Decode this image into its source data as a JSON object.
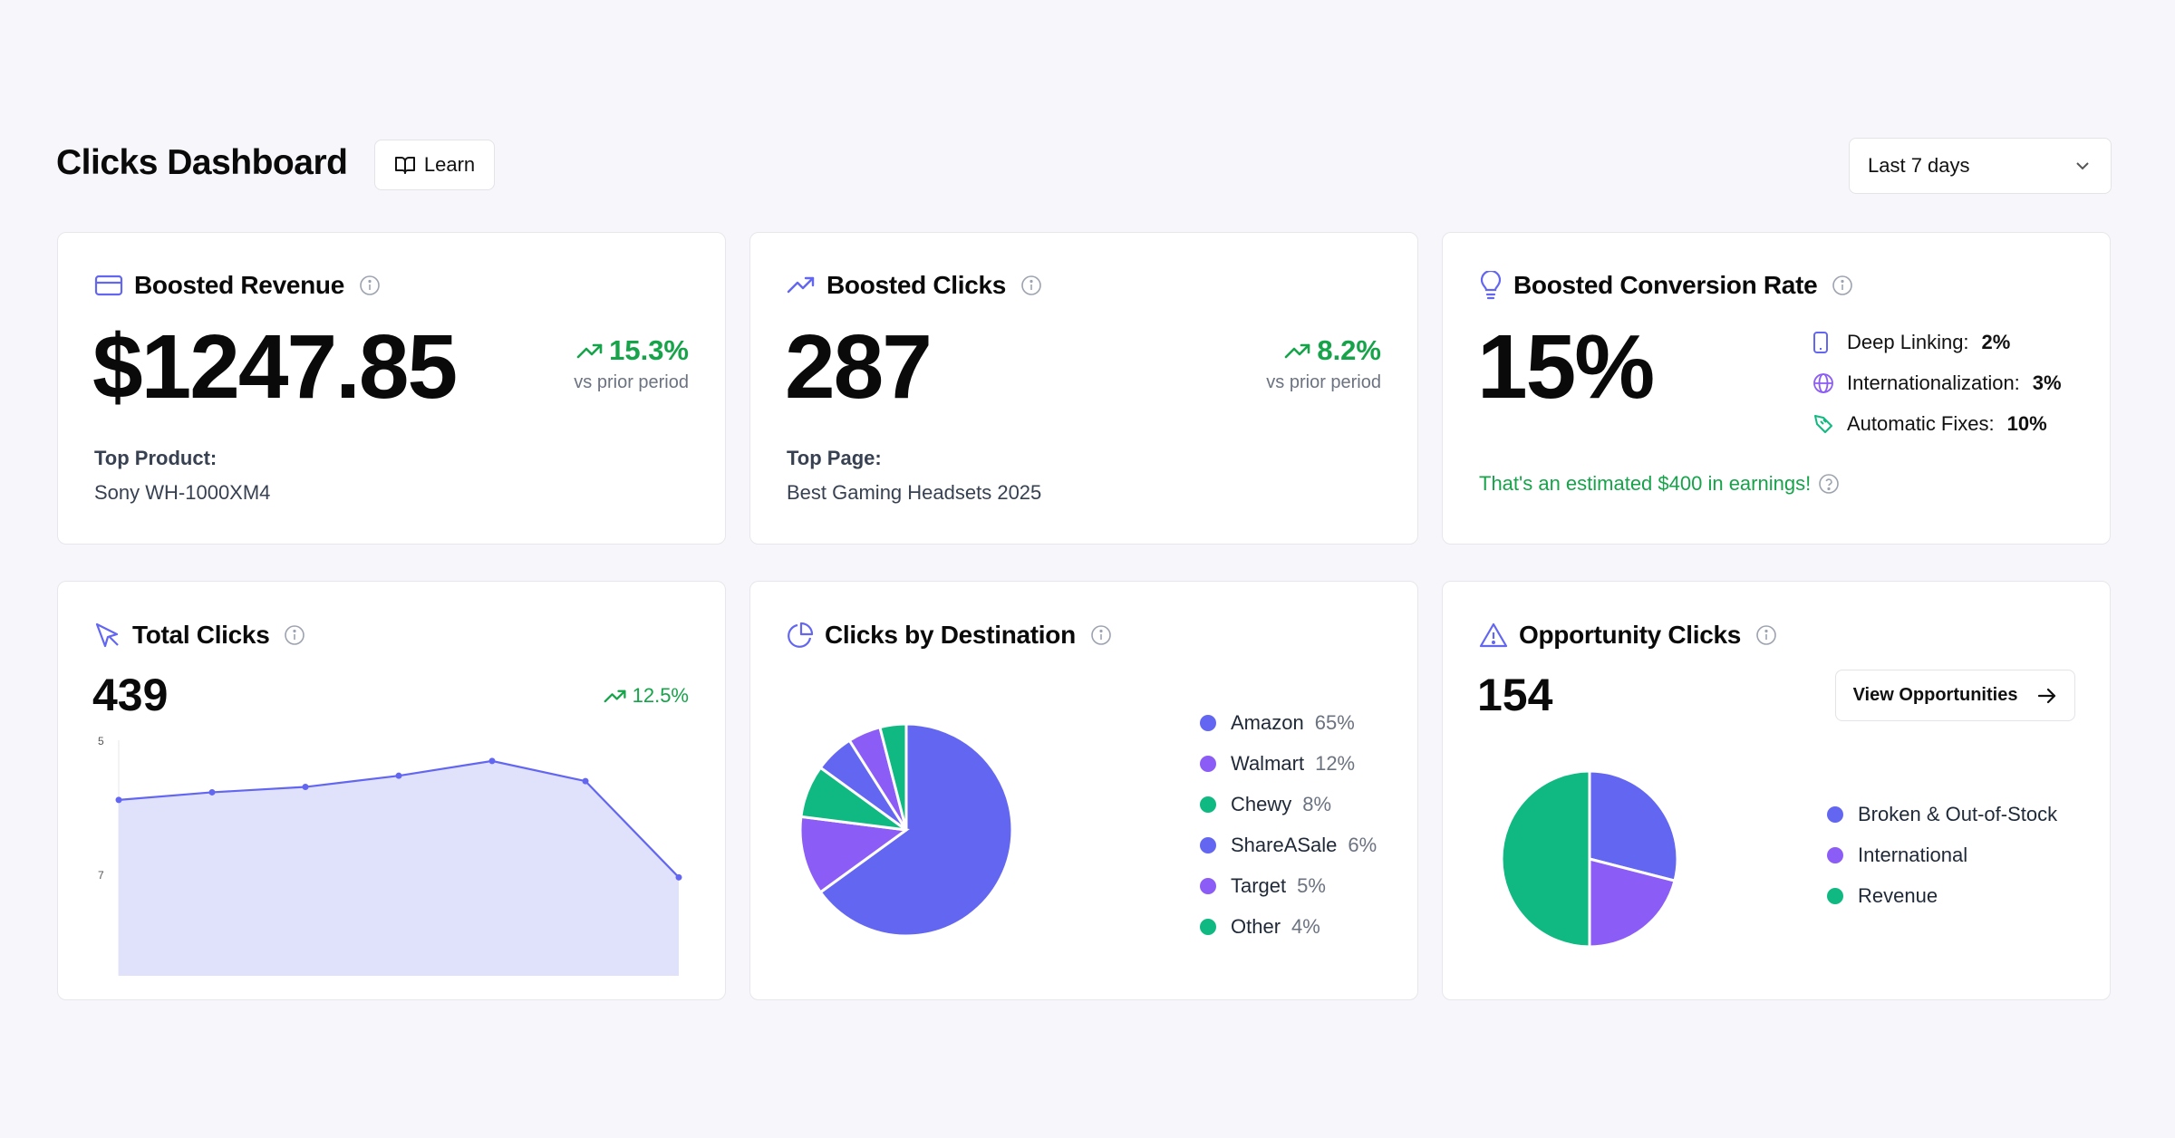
{
  "header": {
    "title": "Clicks Dashboard",
    "learn_label": "Learn",
    "range_value": "Last 7 days"
  },
  "revenue": {
    "title": "Boosted Revenue",
    "value": "$1247.85",
    "trend": "15.3%",
    "trend_sub": "vs prior period",
    "meta_label": "Top Product:",
    "meta_value": "Sony WH-1000XM4"
  },
  "clicks": {
    "title": "Boosted Clicks",
    "value": "287",
    "trend": "8.2%",
    "trend_sub": "vs prior period",
    "meta_label": "Top Page:",
    "meta_value": "Best Gaming Headsets 2025"
  },
  "conversion": {
    "title": "Boosted Conversion Rate",
    "value": "15%",
    "items": [
      {
        "label": "Deep Linking:",
        "value": "2%",
        "icon": "phone-icon"
      },
      {
        "label": "Internationalization:",
        "value": "3%",
        "icon": "globe-icon"
      },
      {
        "label": "Automatic Fixes:",
        "value": "10%",
        "icon": "bandage-icon"
      }
    ],
    "earnings": "That's an estimated $400 in earnings!"
  },
  "total_clicks": {
    "title": "Total Clicks",
    "value": "439",
    "trend": "12.5%"
  },
  "destination": {
    "title": "Clicks by Destination"
  },
  "opportunity": {
    "title": "Opportunity Clicks",
    "value": "154",
    "button_label": "View Opportunities"
  },
  "colors": {
    "indigo": "#6366f1",
    "purple": "#8b5cf6",
    "green": "#10b981",
    "trend_green": "#16a34a"
  },
  "chart_data": [
    {
      "type": "area",
      "title": "Total Clicks",
      "x": [
        1,
        2,
        3,
        4,
        5,
        6,
        7
      ],
      "values": [
        3.93,
        4.1,
        4.22,
        4.47,
        4.8,
        4.35,
        2.2
      ],
      "ytick_labels": [
        "5",
        "7"
      ],
      "color": "#6366f1",
      "fill": "#e0e1fb"
    },
    {
      "type": "pie",
      "title": "Clicks by Destination",
      "categories": [
        "Amazon",
        "Walmart",
        "Chewy",
        "ShareASale",
        "Target",
        "Other"
      ],
      "values": [
        65,
        12,
        8,
        6,
        5,
        4
      ],
      "labels": [
        "65%",
        "12%",
        "8%",
        "6%",
        "5%",
        "4%"
      ],
      "colors": [
        "#6366f1",
        "#8b5cf6",
        "#10b981",
        "#6366f1",
        "#8b5cf6",
        "#10b981"
      ]
    },
    {
      "type": "pie",
      "title": "Opportunity Clicks",
      "categories": [
        "Broken & Out-of-Stock",
        "International",
        "Revenue"
      ],
      "values": [
        29,
        21,
        50
      ],
      "colors": [
        "#6366f1",
        "#8b5cf6",
        "#10b981"
      ]
    }
  ]
}
